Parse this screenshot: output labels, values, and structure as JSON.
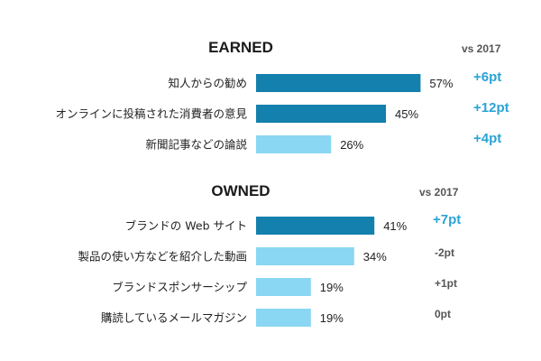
{
  "colors": {
    "bar_dark": "#1380ad",
    "bar_light": "#8ad7f3",
    "delta_highlight": "#2aa3d6",
    "delta_muted": "#555555"
  },
  "chart_data": [
    {
      "type": "bar",
      "orientation": "horizontal",
      "title": "EARNED",
      "comparison_label": "vs 2017",
      "categories": [
        "知人からの勧め",
        "オンラインに投稿された消費者の意見",
        "新聞記事などの論説"
      ],
      "values": [
        57,
        45,
        26
      ],
      "value_labels": [
        "57%",
        "45%",
        "26%"
      ],
      "deltas": [
        "+6pt",
        "+12pt",
        "+4pt"
      ],
      "highlight": [
        true,
        true,
        false
      ],
      "delta_highlight": [
        true,
        true,
        true
      ],
      "unit": "%"
    },
    {
      "type": "bar",
      "orientation": "horizontal",
      "title": "OWNED",
      "comparison_label": "vs 2017",
      "categories": [
        "ブランドの Web サイト",
        "製品の使い方などを紹介した動画",
        "ブランドスポンサーシップ",
        "購読しているメールマガジン"
      ],
      "values": [
        41,
        34,
        19,
        19
      ],
      "value_labels": [
        "41%",
        "34%",
        "19%",
        "19%"
      ],
      "deltas": [
        "+7pt",
        "-2pt",
        "+1pt",
        "0pt"
      ],
      "highlight": [
        true,
        false,
        false,
        false
      ],
      "delta_highlight": [
        true,
        false,
        false,
        false
      ],
      "unit": "%"
    }
  ]
}
